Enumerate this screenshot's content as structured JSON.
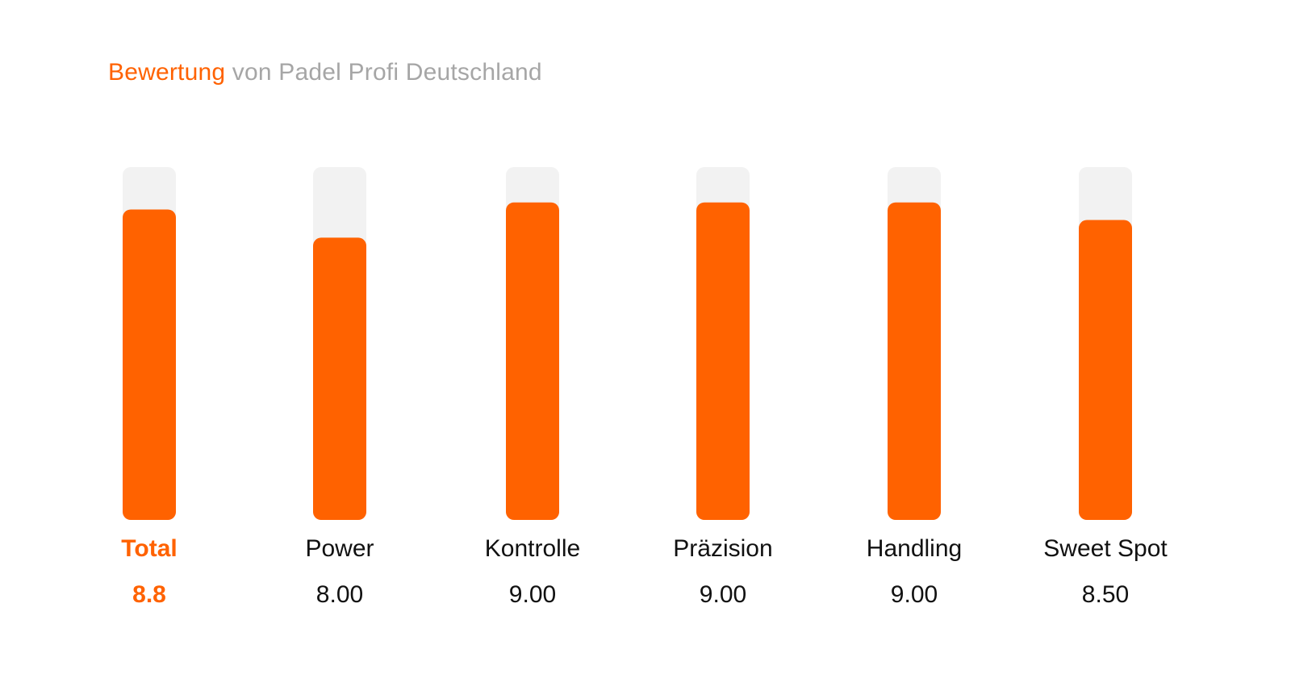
{
  "header": {
    "title_accent": "Bewertung",
    "title_rest": "von Padel Profi Deutschland"
  },
  "colors": {
    "accent": "#ff6200",
    "track": "#f2f2f2",
    "label": "#111111",
    "muted": "#a6a6a6"
  },
  "chart_data": {
    "type": "bar",
    "categories": [
      "Total",
      "Power",
      "Kontrolle",
      "Präzision",
      "Handling",
      "Sweet Spot"
    ],
    "values": [
      8.8,
      8.0,
      9.0,
      9.0,
      9.0,
      8.5
    ],
    "value_labels": [
      "8.8",
      "8.00",
      "9.00",
      "9.00",
      "9.00",
      "8.50"
    ],
    "ylim": [
      0,
      10
    ],
    "highlight_category": "Total",
    "grid": false,
    "legend": "none"
  }
}
